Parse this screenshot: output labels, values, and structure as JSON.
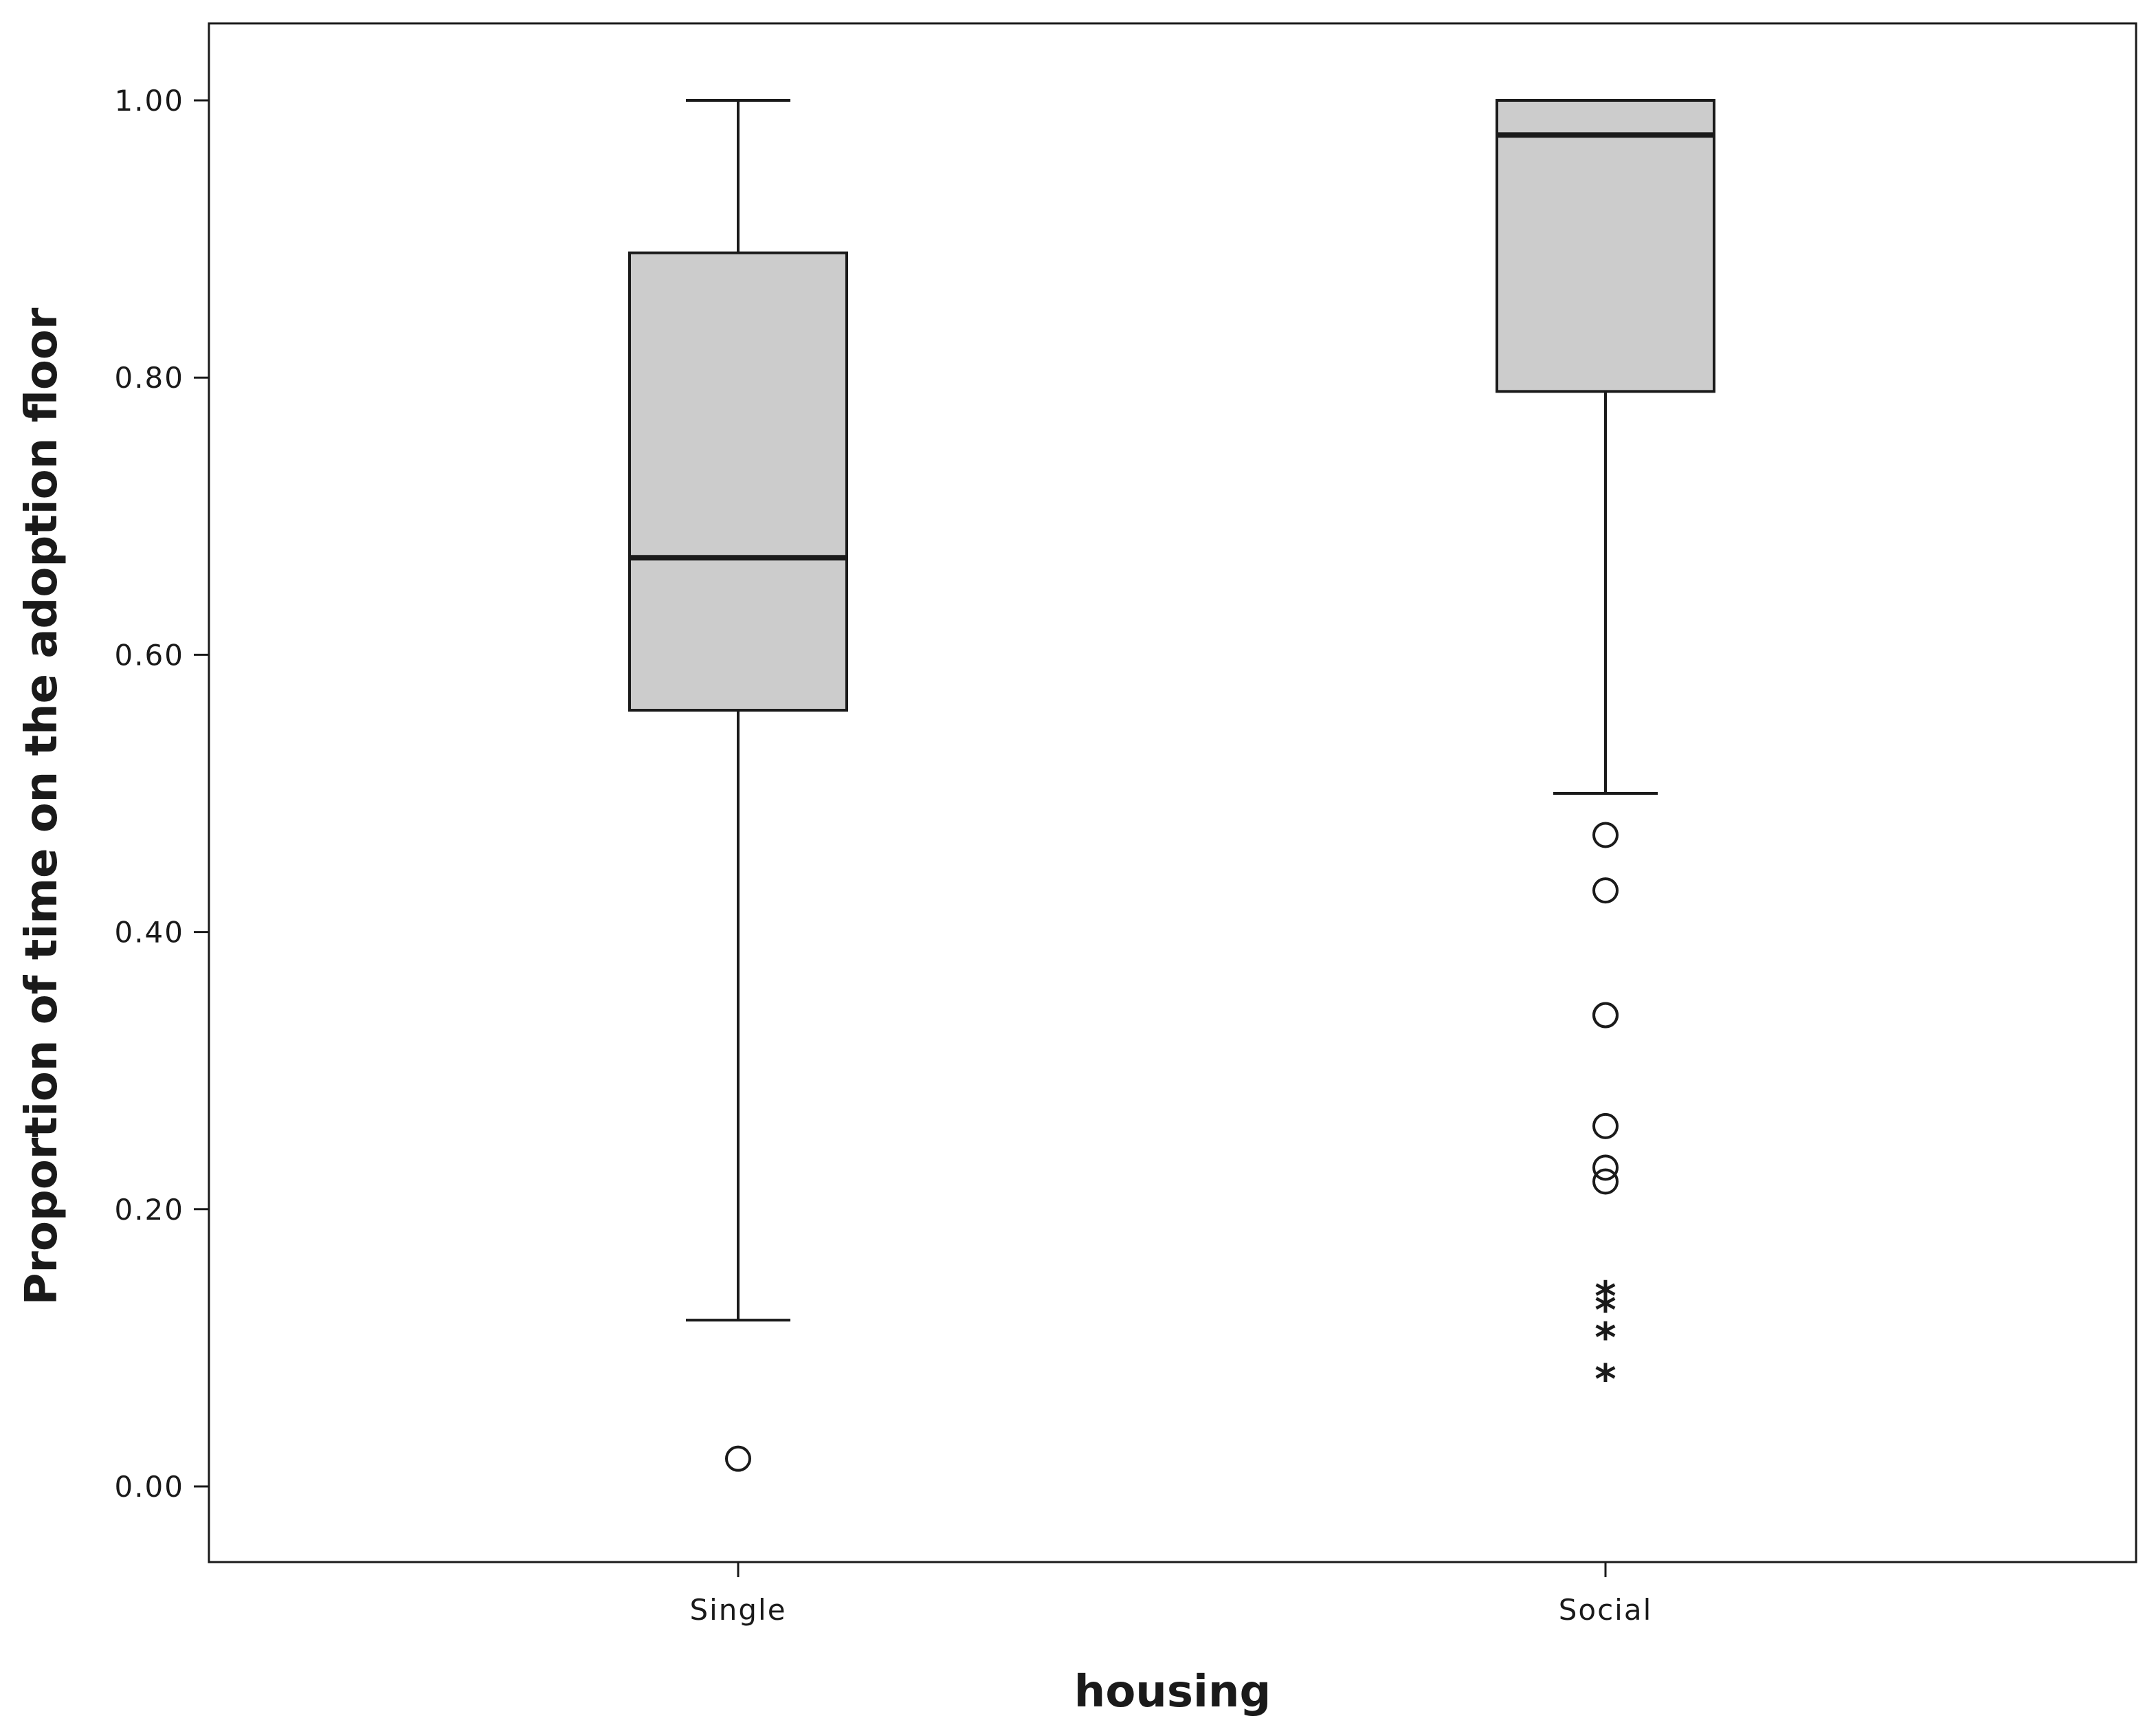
{
  "chart_data": {
    "type": "boxplot",
    "title": "",
    "xlabel": "housing",
    "ylabel": "Proportion of time on the adoption floor",
    "ylim": [
      -0.11,
      1.11
    ],
    "yticks": [
      0.0,
      0.2,
      0.4,
      0.6,
      0.8,
      1.0
    ],
    "ytick_labels": [
      "0.00",
      "0.20",
      "0.40",
      "0.60",
      "0.80",
      "1.00"
    ],
    "categories": [
      "Single",
      "Social"
    ],
    "grid": false,
    "boxes": [
      {
        "category": "Single",
        "whisker_low": 0.12,
        "q1": 0.56,
        "median": 0.67,
        "q3": 0.89,
        "whisker_high": 1.0,
        "outliers": [
          0.02
        ],
        "extremes": []
      },
      {
        "category": "Social",
        "whisker_low": 0.5,
        "q1": 0.79,
        "median": 0.975,
        "q3": 1.0,
        "whisker_high": 1.0,
        "outliers": [
          0.47,
          0.43,
          0.34,
          0.34,
          0.26,
          0.23,
          0.22
        ],
        "extremes": [
          0.14,
          0.13,
          0.11,
          0.08
        ]
      }
    ],
    "colors": {
      "box_fill": "#cccccc",
      "stroke": "#1a1a1a",
      "background": "#ffffff"
    }
  }
}
